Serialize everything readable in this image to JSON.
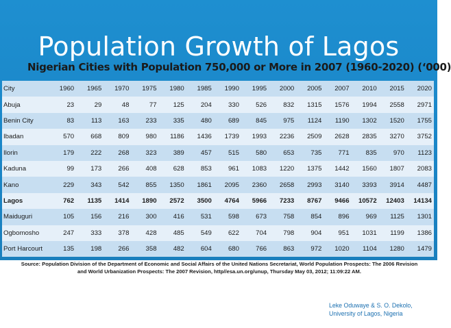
{
  "slide": {
    "title": "Population Growth of Lagos",
    "subtitle": "Nigerian Cities with Population 750,000  or More  in 2007 (1960-2020) (‘000)",
    "source_line1": "Source: Population Division of the Department of Economic and Social Affairs of the United Nations Secretariat, World Population Prospects: The 2006 Revision",
    "source_line2": "and World Urbanization Prospects: The 2007 Revision, http//esa.un.org/unup, Thursday May 03, 2012; 11:09:22 AM.",
    "credit_line1": "Leke Oduwaye & S. O. Dekolo,",
    "credit_line2": "University of Lagos, Nigeria"
  },
  "table": {
    "headers": [
      "City",
      "1960",
      "1965",
      "1970",
      "1975",
      "1980",
      "1985",
      "1990",
      "1995",
      "2000",
      "2005",
      "2007",
      "2010",
      "2015",
      "2020"
    ],
    "rows": [
      [
        "Abuja",
        "23",
        "29",
        "48",
        "77",
        "125",
        "204",
        "330",
        "526",
        "832",
        "1315",
        "1576",
        "1994",
        "2558",
        "2971"
      ],
      [
        "Benin City",
        "83",
        "113",
        "163",
        "233",
        "335",
        "480",
        "689",
        "845",
        "975",
        "1124",
        "1190",
        "1302",
        "1520",
        "1755"
      ],
      [
        "Ibadan",
        "570",
        "668",
        "809",
        "980",
        "1186",
        "1436",
        "1739",
        "1993",
        "2236",
        "2509",
        "2628",
        "2835",
        "3270",
        "3752"
      ],
      [
        "Ilorin",
        "179",
        "222",
        "268",
        "323",
        "389",
        "457",
        "515",
        "580",
        "653",
        "735",
        "771",
        "835",
        "970",
        "1123"
      ],
      [
        "Kaduna",
        "99",
        "173",
        "266",
        "408",
        "628",
        "853",
        "961",
        "1083",
        "1220",
        "1375",
        "1442",
        "1560",
        "1807",
        "2083"
      ],
      [
        "Kano",
        "229",
        "343",
        "542",
        "855",
        "1350",
        "1861",
        "2095",
        "2360",
        "2658",
        "2993",
        "3140",
        "3393",
        "3914",
        "4487"
      ],
      [
        "Lagos",
        "762",
        "1135",
        "1414",
        "1890",
        "2572",
        "3500",
        "4764",
        "5966",
        "7233",
        "8767",
        "9466",
        "10572",
        "12403",
        "14134"
      ],
      [
        "Maiduguri",
        "105",
        "156",
        "216",
        "300",
        "416",
        "531",
        "598",
        "673",
        "758",
        "854",
        "896",
        "969",
        "1125",
        "1301"
      ],
      [
        "Ogbomosho",
        "247",
        "333",
        "378",
        "428",
        "485",
        "549",
        "622",
        "704",
        "798",
        "904",
        "951",
        "1031",
        "1199",
        "1386"
      ],
      [
        "Port Harcourt",
        "135",
        "198",
        "266",
        "358",
        "482",
        "604",
        "680",
        "766",
        "863",
        "972",
        "1020",
        "1104",
        "1280",
        "1479"
      ]
    ],
    "highlight_row": 6
  },
  "colors": {
    "band": "#1a86c8",
    "row_dark": "#c7def1",
    "row_light": "#e6f0f9",
    "credit_text": "#1a6fb0"
  }
}
